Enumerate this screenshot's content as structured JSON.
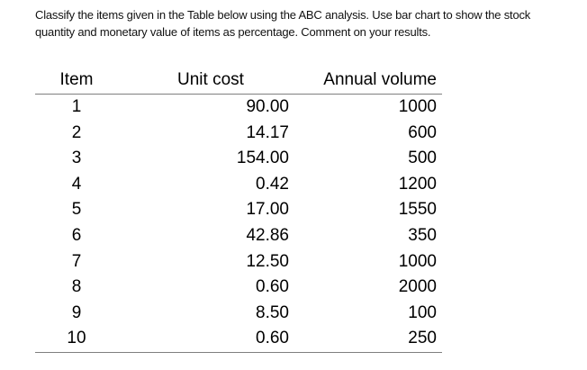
{
  "prompt": {
    "line1": "Classify the items given in the Table below using the ABC analysis. Use bar chart to show the stock",
    "line2": "quantity and monetary value of items as percentage. Comment on your results."
  },
  "table": {
    "headers": {
      "item": "Item",
      "unit_cost": "Unit cost",
      "annual_volume": "Annual volume"
    },
    "rows": [
      {
        "item": "1",
        "unit_cost": "90.00",
        "annual_volume": "1000"
      },
      {
        "item": "2",
        "unit_cost": "14.17",
        "annual_volume": "600"
      },
      {
        "item": "3",
        "unit_cost": "154.00",
        "annual_volume": "500"
      },
      {
        "item": "4",
        "unit_cost": "0.42",
        "annual_volume": "1200"
      },
      {
        "item": "5",
        "unit_cost": "17.00",
        "annual_volume": "1550"
      },
      {
        "item": "6",
        "unit_cost": "42.86",
        "annual_volume": "350"
      },
      {
        "item": "7",
        "unit_cost": "12.50",
        "annual_volume": "1000"
      },
      {
        "item": "8",
        "unit_cost": "0.60",
        "annual_volume": "2000"
      },
      {
        "item": "9",
        "unit_cost": "8.50",
        "annual_volume": "100"
      },
      {
        "item": "10",
        "unit_cost": "0.60",
        "annual_volume": "250"
      }
    ]
  }
}
